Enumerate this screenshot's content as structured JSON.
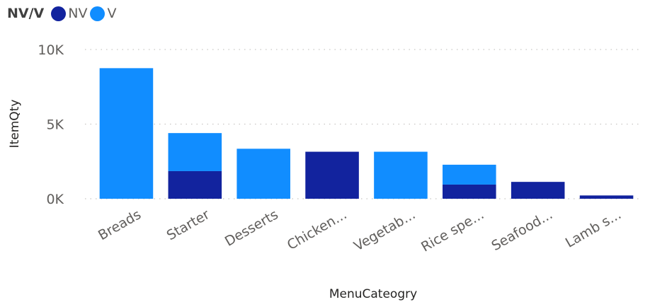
{
  "legend": {
    "title": "NV/V",
    "items": [
      {
        "name": "NV",
        "color": "#12239e"
      },
      {
        "name": "V",
        "color": "#118dff"
      }
    ]
  },
  "chart_data": {
    "type": "bar",
    "stacked": true,
    "categories": [
      "Breads",
      "Starter",
      "Desserts",
      "Chicken...",
      "Vegetab...",
      "Rice spe...",
      "Seafood...",
      "Lamb s..."
    ],
    "series": [
      {
        "name": "NV",
        "color": "#12239e",
        "values": [
          0,
          1850,
          0,
          3150,
          0,
          950,
          1130,
          220
        ]
      },
      {
        "name": "V",
        "color": "#118dff",
        "values": [
          8750,
          2550,
          3350,
          0,
          3150,
          1330,
          0,
          0
        ]
      }
    ],
    "yticks": [
      "0K",
      "5K",
      "10K"
    ],
    "ylim": [
      0,
      10000
    ],
    "xlabel": "MenuCateogry",
    "ylabel": "ItemQty",
    "grid": "horizontal dotted",
    "legend_position": "top-left"
  }
}
